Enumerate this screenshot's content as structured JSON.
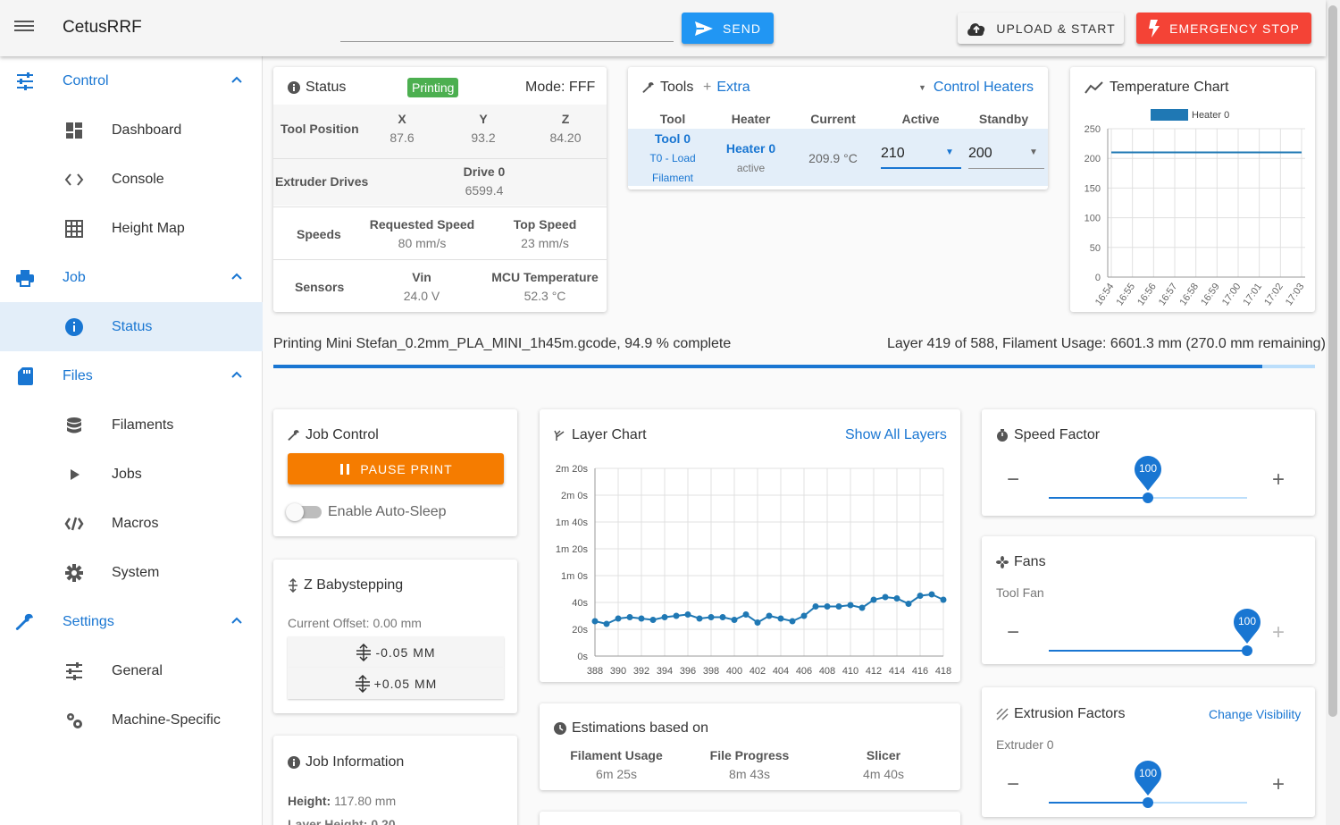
{
  "app": {
    "title": "CetusRRF"
  },
  "topbar": {
    "gcode_placeholder": "",
    "send_label": "SEND",
    "upload_label": "UPLOAD & START",
    "estop_label": "EMERGENCY STOP"
  },
  "sidebar": {
    "groups": [
      {
        "label": "Control",
        "items": [
          "Dashboard",
          "Console",
          "Height Map"
        ]
      },
      {
        "label": "Job",
        "items": [
          "Status"
        ]
      },
      {
        "label": "Files",
        "items": [
          "Filaments",
          "Jobs",
          "Macros",
          "System"
        ]
      },
      {
        "label": "Settings",
        "items": [
          "General",
          "Machine-Specific"
        ]
      }
    ]
  },
  "status": {
    "title": "Status",
    "badge": "Printing",
    "mode": "Mode: FFF",
    "tool_position_label": "Tool Position",
    "axes": [
      {
        "name": "X",
        "value": "87.6"
      },
      {
        "name": "Y",
        "value": "93.2"
      },
      {
        "name": "Z",
        "value": "84.20"
      }
    ],
    "extruder_label": "Extruder Drives",
    "drive_name": "Drive 0",
    "drive_value": "6599.4",
    "speeds_label": "Speeds",
    "requested_label": "Requested Speed",
    "requested_value": "80 mm/s",
    "top_label": "Top Speed",
    "top_value": "23 mm/s",
    "sensors_label": "Sensors",
    "vin_label": "Vin",
    "vin_value": "24.0 V",
    "mcu_label": "MCU Temperature",
    "mcu_value": "52.3 °C"
  },
  "tools": {
    "title": "Tools",
    "extra": "Extra",
    "control_heaters": "Control Heaters",
    "headers": [
      "Tool",
      "Heater",
      "Current",
      "Active",
      "Standby"
    ],
    "tool_name": "Tool 0",
    "tool_sub1": "T0 - Load",
    "tool_sub2": "Filament",
    "heater_name": "Heater 0",
    "heater_state": "active",
    "current": "209.9 °C",
    "active": "210",
    "standby": "200"
  },
  "temp_chart": {
    "title": "Temperature Chart"
  },
  "job_progress": {
    "file_text": "Printing Mini Stefan_0.2mm_PLA_MINI_1h45m.gcode, 94.9 % complete",
    "layer_text": "Layer 419 of 588, Filament Usage: 6601.3 mm (270.0 mm remaining)",
    "percent": 94.9
  },
  "job_control": {
    "title": "Job Control",
    "pause_label": "PAUSE PRINT",
    "autosleep_label": "Enable Auto-Sleep"
  },
  "babystep": {
    "title": "Z Babystepping",
    "offset": "Current Offset: 0.00 mm",
    "minus_label": "-0.05 MM",
    "plus_label": "+0.05 MM"
  },
  "job_info": {
    "title": "Job Information",
    "height_label": "Height:",
    "height_value": "117.80 mm",
    "layer_height_label": "Layer Height: 0.20"
  },
  "layer_chart": {
    "title": "Layer Chart",
    "show_all": "Show All Layers"
  },
  "estimations": {
    "title": "Estimations based on",
    "items": [
      {
        "label": "Filament Usage",
        "value": "6m 25s"
      },
      {
        "label": "File Progress",
        "value": "8m 43s"
      },
      {
        "label": "Slicer",
        "value": "4m 40s"
      }
    ]
  },
  "speed_factor": {
    "title": "Speed Factor",
    "value": 100,
    "min": 50,
    "max": 150
  },
  "fans": {
    "title": "Fans",
    "fan_label": "Tool Fan",
    "value": 100,
    "min": 0,
    "max": 100
  },
  "extrusion": {
    "title": "Extrusion Factors",
    "change_visibility": "Change Visibility",
    "extruder_label": "Extruder 0",
    "value": 100,
    "min": 50,
    "max": 150
  },
  "colors": {
    "accent": "#1976d2",
    "send": "#2196f3",
    "estop": "#f44336",
    "pause": "#f57c00",
    "badge": "#4caf50",
    "series": "#1f78b4"
  },
  "chart_data": [
    {
      "type": "line",
      "title": "Temperature Chart",
      "x": [
        "16:54",
        "16:55",
        "16:56",
        "16:57",
        "16:58",
        "16:59",
        "17:00",
        "17:01",
        "17:02",
        "17:03"
      ],
      "series": [
        {
          "name": "Heater 0",
          "values": [
            210,
            210,
            210,
            210,
            210,
            210,
            210,
            210,
            210,
            210
          ]
        }
      ],
      "yticks": [
        0,
        50,
        100,
        150,
        200,
        250
      ],
      "ylim": [
        0,
        250
      ],
      "legend": "top",
      "grid": true
    },
    {
      "type": "line",
      "title": "Layer Chart",
      "x": [
        388,
        389,
        390,
        391,
        392,
        393,
        394,
        395,
        396,
        397,
        398,
        399,
        400,
        401,
        402,
        403,
        404,
        405,
        406,
        407,
        408,
        409,
        410,
        411,
        412,
        413,
        414,
        415,
        416,
        417,
        418
      ],
      "xticks": [
        388,
        390,
        392,
        394,
        396,
        398,
        400,
        402,
        404,
        406,
        408,
        410,
        412,
        414,
        416,
        418
      ],
      "series": [
        {
          "name": "",
          "values": [
            26,
            24,
            28,
            29,
            28,
            27,
            29,
            30,
            31,
            28,
            29,
            29,
            27,
            31,
            25,
            30,
            28,
            26,
            30,
            37,
            37,
            37,
            38,
            36,
            42,
            44,
            43,
            39,
            45,
            46,
            42
          ]
        }
      ],
      "yticks": [
        "0s",
        "20s",
        "40s",
        "1m 0s",
        "1m 20s",
        "1m 40s",
        "2m 0s",
        "2m 20s"
      ],
      "ylim": [
        0,
        140
      ],
      "grid": true
    }
  ]
}
